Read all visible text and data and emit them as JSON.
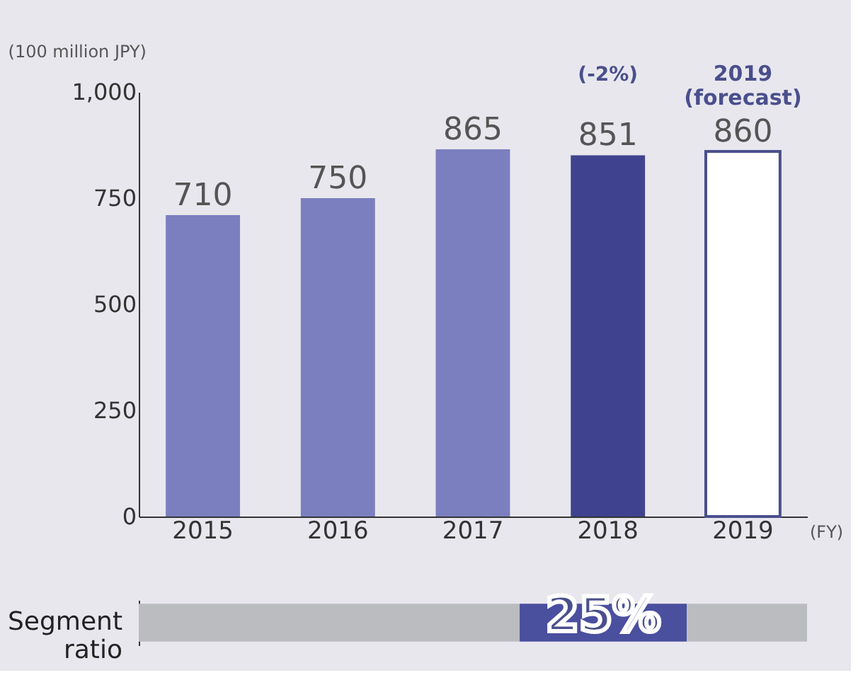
{
  "chart_data": [
    {
      "type": "bar",
      "ylabel": "(100 million JPY)",
      "xlabel": "(FY)",
      "categories": [
        "2015",
        "2016",
        "2017",
        "2018",
        "2019"
      ],
      "values": [
        710,
        750,
        865,
        851,
        860
      ],
      "colors": [
        "#7b7fbf",
        "#7b7fbf",
        "#7b7fbf",
        "#3f438f",
        "#ffffff"
      ],
      "data_labels": true,
      "ylim": [
        0,
        1000
      ],
      "yticks": [
        0,
        250,
        500,
        750,
        {
          "value": 1000,
          "label": "1,000"
        }
      ],
      "grid": false,
      "annotations": [
        {
          "text": "2019 (forecast)",
          "x": "2019",
          "y": 860
        },
        "(-2%)"
      ]
    },
    {
      "type": "bar",
      "orientation": "horizontal",
      "stacked": true,
      "categories": [
        "Segment ratio"
      ],
      "xlim": [
        0,
        100
      ],
      "tick_labels": "y",
      "series": [
        {
          "color": "#bbbcc0",
          "values": [
            57
          ]
        },
        {
          "color": "#4a4f9e",
          "values": [
            25
          ],
          "value_labels": [
            "25%"
          ]
        },
        {
          "color": "#bbbcc0",
          "values": [
            18
          ]
        }
      ]
    }
  ]
}
